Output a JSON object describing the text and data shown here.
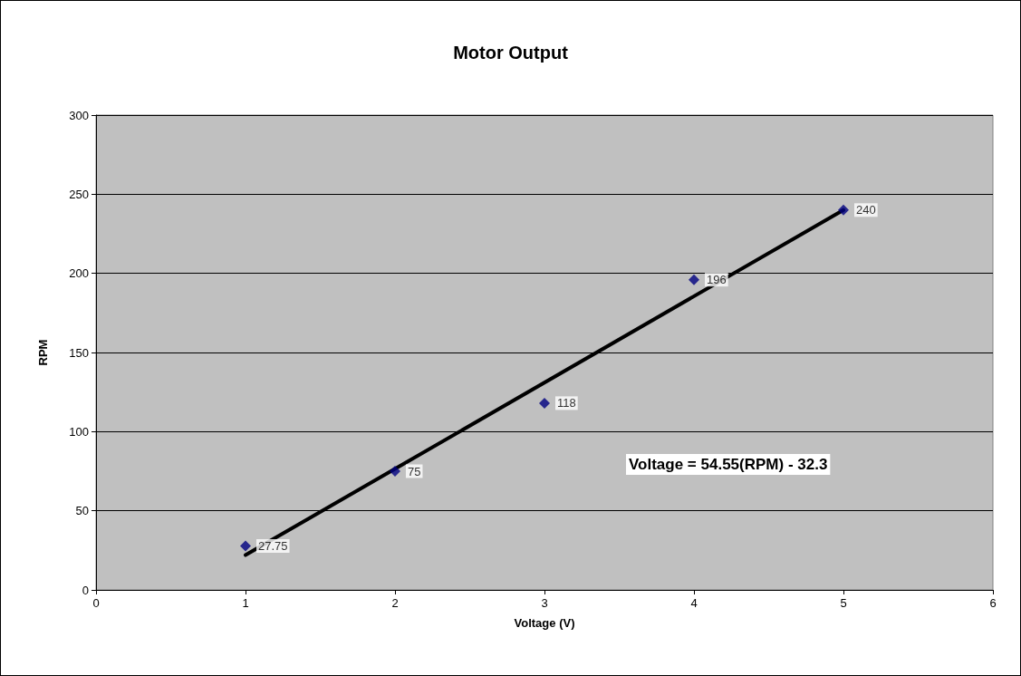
{
  "chart_data": {
    "type": "scatter",
    "title": "Motor Output",
    "xlabel": "Voltage (V)",
    "ylabel": "RPM",
    "x": [
      1,
      2,
      3,
      4,
      5
    ],
    "series": [
      {
        "color": "#000080",
        "values": [
          27.75,
          75,
          118,
          196,
          240
        ],
        "value_labels": [
          "27.75",
          "75",
          "118",
          "196",
          "240"
        ],
        "marker": "diamond"
      },
      {
        "type": "line",
        "color": "#000000",
        "x": [
          1,
          5
        ],
        "values": [
          22,
          240
        ],
        "marker": "none",
        "line_style": "solid"
      }
    ],
    "annotations": [
      "Voltage = 54.55(RPM) - 32.3"
    ],
    "xlim": [
      0,
      6
    ],
    "xticks": [
      0,
      1,
      2,
      3,
      4,
      5,
      6
    ],
    "ylim": [
      0,
      300
    ],
    "yticks": [
      0,
      50,
      100,
      150,
      200,
      250,
      300
    ],
    "grid": "y"
  }
}
